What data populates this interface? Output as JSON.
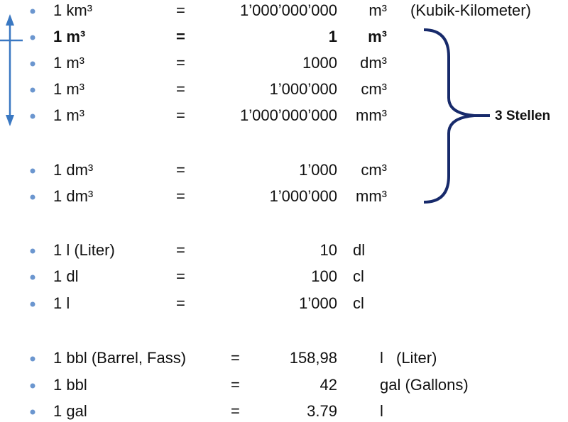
{
  "rows": [
    {
      "left": "1 km³",
      "eq": "=",
      "value": "1’000’000’000",
      "unit": "m³",
      "note": "(Kubik-Kilometer)"
    },
    {
      "left": "1 m³",
      "eq": "=",
      "value": "1",
      "unit": "m³"
    },
    {
      "left": "1 m³",
      "eq": "=",
      "value": "1000",
      "unit": "dm³"
    },
    {
      "left": "1 m³",
      "eq": "=",
      "value": "1’000’000",
      "unit": "cm³"
    },
    {
      "left": "1 m³",
      "eq": "=",
      "value": "1’000’000’000",
      "unit": "mm³"
    },
    {
      "left": "1 dm³",
      "eq": "=",
      "value": "1’000",
      "unit": "cm³"
    },
    {
      "left": "1 dm³",
      "eq": "=",
      "value": "1’000’000",
      "unit": "mm³"
    },
    {
      "left": "1 l (Liter)",
      "eq": "=",
      "value": "10",
      "unit": "dl"
    },
    {
      "left": "1 dl",
      "eq": "=",
      "value": "100",
      "unit": "cl"
    },
    {
      "left": "1 l",
      "eq": "=",
      "value": "1’000",
      "unit": "cl"
    },
    {
      "left": "1 bbl (Barrel, Fass)",
      "eq": "=",
      "value": "158,98",
      "unit": "l",
      "note": "(Liter)"
    },
    {
      "left": "1 bbl",
      "eq": "=",
      "value": "42",
      "unit": "gal (Gallons)"
    },
    {
      "left": "1 gal",
      "eq": "=",
      "value": "3.79",
      "unit": "l"
    }
  ],
  "brace_label": "3 Stellen"
}
